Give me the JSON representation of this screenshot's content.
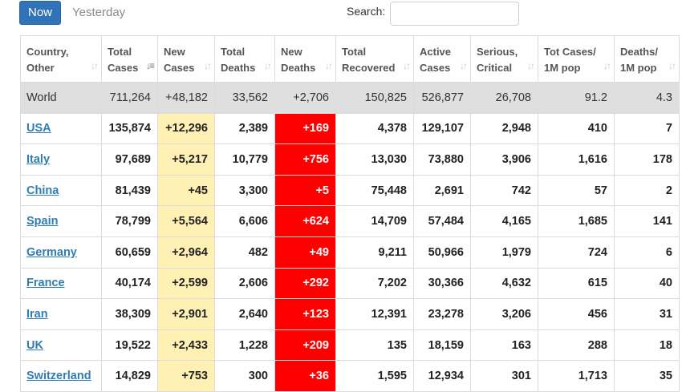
{
  "tabs": {
    "now": "Now",
    "yesterday": "Yesterday"
  },
  "search": {
    "label": "Search:",
    "value": "",
    "placeholder": ""
  },
  "colors": {
    "tab_active": "#3173b8",
    "new_cases_bg": "#fff0b4",
    "new_deaths_bg": "#ff0000",
    "link": "#2f7db3",
    "world_row_bg": "#dfdfdf"
  },
  "columns": [
    {
      "line1": "Country,",
      "line2": "Other",
      "sort": "sort-icon"
    },
    {
      "line1": "Total",
      "line2": "Cases",
      "sort": "sort-desc-icon"
    },
    {
      "line1": "New",
      "line2": "Cases",
      "sort": "sort-icon"
    },
    {
      "line1": "Total",
      "line2": "Deaths",
      "sort": "sort-icon"
    },
    {
      "line1": "New",
      "line2": "Deaths",
      "sort": "sort-icon"
    },
    {
      "line1": "Total",
      "line2": "Recovered",
      "sort": "sort-icon"
    },
    {
      "line1": "Active",
      "line2": "Cases",
      "sort": "sort-icon"
    },
    {
      "line1": "Serious,",
      "line2": "Critical",
      "sort": "sort-icon"
    },
    {
      "line1": "Tot Cases/",
      "line2": "1M pop",
      "sort": "sort-icon"
    },
    {
      "line1": "Deaths/",
      "line2": "1M pop",
      "sort": "sort-icon"
    }
  ],
  "rows": [
    {
      "country": "World",
      "total_cases": "711,264",
      "new_cases": "+48,182",
      "total_deaths": "33,562",
      "new_deaths": "+2,706",
      "total_recovered": "150,825",
      "active_cases": "526,877",
      "serious_critical": "26,708",
      "tot_cases_1m": "91.2",
      "deaths_1m": "4.3"
    },
    {
      "country": "USA",
      "total_cases": "135,874",
      "new_cases": "+12,296",
      "total_deaths": "2,389",
      "new_deaths": "+169",
      "total_recovered": "4,378",
      "active_cases": "129,107",
      "serious_critical": "2,948",
      "tot_cases_1m": "410",
      "deaths_1m": "7"
    },
    {
      "country": "Italy",
      "total_cases": "97,689",
      "new_cases": "+5,217",
      "total_deaths": "10,779",
      "new_deaths": "+756",
      "total_recovered": "13,030",
      "active_cases": "73,880",
      "serious_critical": "3,906",
      "tot_cases_1m": "1,616",
      "deaths_1m": "178"
    },
    {
      "country": "China",
      "total_cases": "81,439",
      "new_cases": "+45",
      "total_deaths": "3,300",
      "new_deaths": "+5",
      "total_recovered": "75,448",
      "active_cases": "2,691",
      "serious_critical": "742",
      "tot_cases_1m": "57",
      "deaths_1m": "2"
    },
    {
      "country": "Spain",
      "total_cases": "78,799",
      "new_cases": "+5,564",
      "total_deaths": "6,606",
      "new_deaths": "+624",
      "total_recovered": "14,709",
      "active_cases": "57,484",
      "serious_critical": "4,165",
      "tot_cases_1m": "1,685",
      "deaths_1m": "141"
    },
    {
      "country": "Germany",
      "total_cases": "60,659",
      "new_cases": "+2,964",
      "total_deaths": "482",
      "new_deaths": "+49",
      "total_recovered": "9,211",
      "active_cases": "50,966",
      "serious_critical": "1,979",
      "tot_cases_1m": "724",
      "deaths_1m": "6"
    },
    {
      "country": "France",
      "total_cases": "40,174",
      "new_cases": "+2,599",
      "total_deaths": "2,606",
      "new_deaths": "+292",
      "total_recovered": "7,202",
      "active_cases": "30,366",
      "serious_critical": "4,632",
      "tot_cases_1m": "615",
      "deaths_1m": "40"
    },
    {
      "country": "Iran",
      "total_cases": "38,309",
      "new_cases": "+2,901",
      "total_deaths": "2,640",
      "new_deaths": "+123",
      "total_recovered": "12,391",
      "active_cases": "23,278",
      "serious_critical": "3,206",
      "tot_cases_1m": "456",
      "deaths_1m": "31"
    },
    {
      "country": "UK",
      "total_cases": "19,522",
      "new_cases": "+2,433",
      "total_deaths": "1,228",
      "new_deaths": "+209",
      "total_recovered": "135",
      "active_cases": "18,159",
      "serious_critical": "163",
      "tot_cases_1m": "288",
      "deaths_1m": "18"
    },
    {
      "country": "Switzerland",
      "total_cases": "14,829",
      "new_cases": "+753",
      "total_deaths": "300",
      "new_deaths": "+36",
      "total_recovered": "1,595",
      "active_cases": "12,934",
      "serious_critical": "301",
      "tot_cases_1m": "1,713",
      "deaths_1m": "35"
    }
  ]
}
